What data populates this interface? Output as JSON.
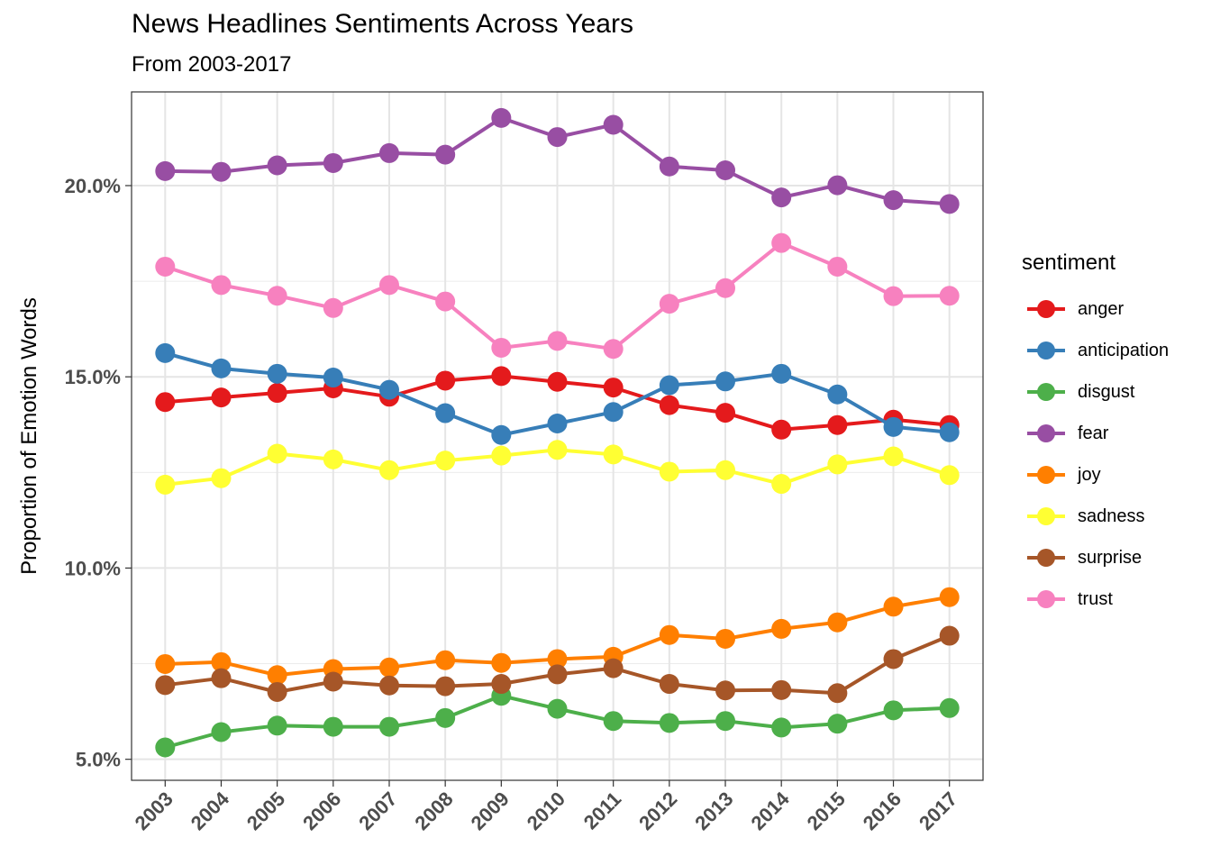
{
  "chart_data": {
    "type": "line",
    "title": "News Headlines Sentiments Across Years",
    "subtitle": "From 2003-2017",
    "xlabel": "",
    "ylabel": "Proportion of Emotion Words",
    "x": [
      "2003",
      "2004",
      "2005",
      "2006",
      "2007",
      "2008",
      "2009",
      "2010",
      "2011",
      "2012",
      "2013",
      "2014",
      "2015",
      "2016",
      "2017"
    ],
    "ylim": [
      0.0445,
      0.2245
    ],
    "y_ticks": [
      {
        "value": 0.05,
        "label": "5.0%"
      },
      {
        "value": 0.1,
        "label": "10.0%"
      },
      {
        "value": 0.15,
        "label": "15.0%"
      },
      {
        "value": 0.2,
        "label": "20.0%"
      }
    ],
    "grid": true,
    "legend": {
      "title": "sentiment",
      "position": "right"
    },
    "series": [
      {
        "name": "anger",
        "color": "#E41A1C",
        "values": [
          0.1434,
          0.1446,
          0.1458,
          0.147,
          0.1448,
          0.149,
          0.1502,
          0.1487,
          0.1472,
          0.1426,
          0.1406,
          0.1362,
          0.1374,
          0.1388,
          0.1374
        ]
      },
      {
        "name": "anticipation",
        "color": "#377EB8",
        "values": [
          0.1562,
          0.1522,
          0.1508,
          0.1498,
          0.1466,
          0.1405,
          0.1348,
          0.1378,
          0.1408,
          0.1478,
          0.1488,
          0.1508,
          0.1454,
          0.1369,
          0.1355
        ]
      },
      {
        "name": "disgust",
        "color": "#4DAF4A",
        "values": [
          0.0531,
          0.0571,
          0.0588,
          0.0585,
          0.0585,
          0.0608,
          0.0666,
          0.0632,
          0.06,
          0.0595,
          0.06,
          0.0583,
          0.0593,
          0.0628,
          0.0634
        ]
      },
      {
        "name": "fear",
        "color": "#984EA3",
        "values": [
          0.2038,
          0.2036,
          0.2053,
          0.2059,
          0.2085,
          0.2081,
          0.2177,
          0.2127,
          0.2159,
          0.205,
          0.204,
          0.1969,
          0.2001,
          0.1962,
          0.1952
        ]
      },
      {
        "name": "joy",
        "color": "#FF7F00",
        "values": [
          0.0749,
          0.0754,
          0.072,
          0.0736,
          0.074,
          0.0759,
          0.0752,
          0.0762,
          0.0768,
          0.0825,
          0.0815,
          0.0841,
          0.0858,
          0.0899,
          0.0924
        ]
      },
      {
        "name": "sadness",
        "color": "#FFFF33",
        "values": [
          0.1218,
          0.1235,
          0.1299,
          0.1284,
          0.1256,
          0.1281,
          0.1294,
          0.1309,
          0.1297,
          0.1252,
          0.1256,
          0.122,
          0.1271,
          0.1292,
          0.1243
        ]
      },
      {
        "name": "surprise",
        "color": "#A65628",
        "values": [
          0.0694,
          0.0712,
          0.0676,
          0.0703,
          0.0693,
          0.0691,
          0.0697,
          0.0722,
          0.0738,
          0.0697,
          0.068,
          0.0681,
          0.0673,
          0.0762,
          0.0823
        ]
      },
      {
        "name": "trust",
        "color": "#F781BF",
        "values": [
          0.1788,
          0.174,
          0.1712,
          0.168,
          0.174,
          0.1697,
          0.1576,
          0.1594,
          0.1573,
          0.1691,
          0.1732,
          0.185,
          0.1788,
          0.1711,
          0.1712
        ]
      }
    ]
  }
}
